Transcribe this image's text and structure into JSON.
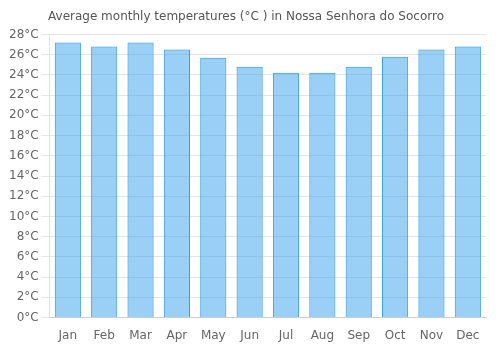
{
  "chart_data": {
    "type": "bar",
    "title": "Average monthly temperatures (°C ) in Nossa Senhora do Socorro",
    "categories": [
      "Jan",
      "Feb",
      "Mar",
      "Apr",
      "May",
      "Jun",
      "Jul",
      "Aug",
      "Sep",
      "Oct",
      "Nov",
      "Dec"
    ],
    "values": [
      27.2,
      26.8,
      27.2,
      26.5,
      25.7,
      24.8,
      24.2,
      24.2,
      24.8,
      25.8,
      26.5,
      26.8
    ],
    "ylim": [
      0,
      28
    ],
    "yticks": [
      {
        "value": 0,
        "label": "0°C"
      },
      {
        "value": 2,
        "label": "2°C"
      },
      {
        "value": 4,
        "label": "4°C"
      },
      {
        "value": 6,
        "label": "6°C"
      },
      {
        "value": 8,
        "label": "8°C"
      },
      {
        "value": 10,
        "label": "10°C"
      },
      {
        "value": 12,
        "label": "12°C"
      },
      {
        "value": 14,
        "label": "14°C"
      },
      {
        "value": 16,
        "label": "16°C"
      },
      {
        "value": 18,
        "label": "18°C"
      },
      {
        "value": 20,
        "label": "20°C"
      },
      {
        "value": 22,
        "label": "22°C"
      },
      {
        "value": 24,
        "label": "24°C"
      },
      {
        "value": 26,
        "label": "26°C"
      },
      {
        "value": 28,
        "label": "28°C"
      }
    ],
    "grid": true
  }
}
